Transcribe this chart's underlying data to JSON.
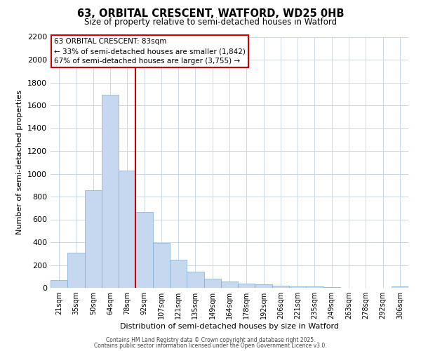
{
  "title": "63, ORBITAL CRESCENT, WATFORD, WD25 0HB",
  "subtitle": "Size of property relative to semi-detached houses in Watford",
  "xlabel": "Distribution of semi-detached houses by size in Watford",
  "ylabel": "Number of semi-detached properties",
  "bar_color": "#c5d8f0",
  "bar_edge_color": "#7bafd4",
  "categories": [
    "21sqm",
    "35sqm",
    "50sqm",
    "64sqm",
    "78sqm",
    "92sqm",
    "107sqm",
    "121sqm",
    "135sqm",
    "149sqm",
    "164sqm",
    "178sqm",
    "192sqm",
    "206sqm",
    "221sqm",
    "235sqm",
    "249sqm",
    "263sqm",
    "278sqm",
    "292sqm",
    "306sqm"
  ],
  "values": [
    70,
    310,
    855,
    1690,
    1030,
    665,
    395,
    245,
    140,
    80,
    55,
    35,
    30,
    20,
    15,
    10,
    5,
    2,
    1,
    0,
    10
  ],
  "ylim": [
    0,
    2200
  ],
  "yticks": [
    0,
    200,
    400,
    600,
    800,
    1000,
    1200,
    1400,
    1600,
    1800,
    2000,
    2200
  ],
  "vline_x_index": 4,
  "annotation_title": "63 ORBITAL CRESCENT: 83sqm",
  "annotation_line1": "← 33% of semi-detached houses are smaller (1,842)",
  "annotation_line2": "67% of semi-detached houses are larger (3,755) →",
  "footer1": "Contains HM Land Registry data © Crown copyright and database right 2025.",
  "footer2": "Contains public sector information licensed under the Open Government Licence v3.0.",
  "vline_color": "#cc0000",
  "box_edge_color": "#cc0000",
  "background_color": "#ffffff",
  "grid_color": "#c8d8e8"
}
